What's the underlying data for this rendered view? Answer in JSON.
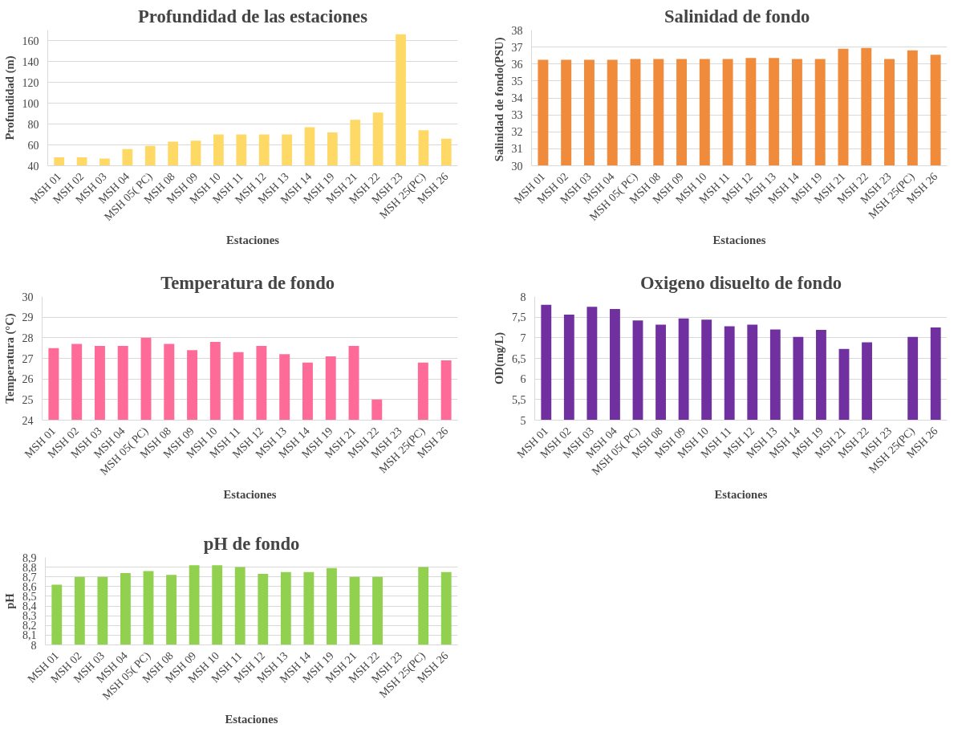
{
  "chart_data": [
    {
      "type": "bar",
      "title": "Profundidad de las estaciones",
      "xlabel": "Estaciones",
      "ylabel": "Profundidad (m)",
      "color": "#ffd966",
      "grid": "y",
      "categories": [
        "MSH 01",
        "MSH 02",
        "MSH 03",
        "MSH 04",
        "MSH 05( PC)",
        "MSH 08",
        "MSH 09",
        "MSH 10",
        "MSH 11",
        "MSH 12",
        "MSH 13",
        "MSH 14",
        "MSH 19",
        "MSH 21",
        "MSH 22",
        "MSH 23",
        "MSH 25(PC)",
        "MSH 26"
      ],
      "values": [
        48,
        48,
        47,
        56,
        59,
        63,
        64,
        70,
        70,
        70,
        70,
        77,
        72,
        84,
        91,
        166,
        74,
        66
      ],
      "ylim": [
        40,
        170
      ],
      "yticks": [
        40,
        60,
        80,
        100,
        120,
        140,
        160
      ]
    },
    {
      "type": "bar",
      "title": "Salinidad  de fondo",
      "xlabel": "Estaciones",
      "ylabel": "Salinidad  de fondo(PSU)",
      "color": "#f08b3c",
      "grid": "y",
      "categories": [
        "MSH 01",
        "MSH 02",
        "MSH 03",
        "MSH 04",
        "MSH 05( PC)",
        "MSH 08",
        "MSH 09",
        "MSH 10",
        "MSH 11",
        "MSH 12",
        "MSH 13",
        "MSH 14",
        "MSH 19",
        "MSH 21",
        "MSH 22",
        "MSH 23",
        "MSH 25(PC)",
        "MSH 26"
      ],
      "values": [
        36.25,
        36.25,
        36.25,
        36.25,
        36.3,
        36.3,
        36.3,
        36.3,
        36.3,
        36.35,
        36.35,
        36.3,
        36.3,
        36.9,
        36.95,
        36.3,
        36.8,
        36.55
      ],
      "ylim": [
        30,
        38
      ],
      "yticks": [
        30,
        31,
        32,
        33,
        34,
        35,
        36,
        37,
        38
      ]
    },
    {
      "type": "bar",
      "title": "Temperatura  de fondo",
      "xlabel": "Estaciones",
      "ylabel": "Temperatura (°C)",
      "color": "#ff6b99",
      "grid": "y",
      "categories": [
        "MSH 01",
        "MSH 02",
        "MSH 03",
        "MSH 04",
        "MSH 05( PC)",
        "MSH 08",
        "MSH 09",
        "MSH 10",
        "MSH 11",
        "MSH 12",
        "MSH 13",
        "MSH 14",
        "MSH 19",
        "MSH 21",
        "MSH 22",
        "MSH 23",
        "MSH 25(PC)",
        "MSH 26"
      ],
      "values": [
        27.5,
        27.7,
        27.6,
        27.6,
        28,
        27.7,
        27.4,
        27.8,
        27.3,
        27.6,
        27.2,
        26.8,
        27.1,
        27.6,
        25,
        null,
        26.8,
        26.9
      ],
      "ylim": [
        24,
        30
      ],
      "yticks": [
        24,
        25,
        26,
        27,
        28,
        29,
        30
      ]
    },
    {
      "type": "bar",
      "title": "Oxigeno disuelto de fondo",
      "xlabel": "Estaciones",
      "ylabel": "OD(mg/L)",
      "color": "#7030a0",
      "grid": "y",
      "categories": [
        "MSH 01",
        "MSH 02",
        "MSH 03",
        "MSH 04",
        "MSH 05( PC)",
        "MSH 08",
        "MSH 09",
        "MSH 10",
        "MSH 11",
        "MSH 12",
        "MSH 13",
        "MSH 14",
        "MSH 19",
        "MSH 21",
        "MSH 22",
        "MSH 23",
        "MSH 25(PC)",
        "MSH 26"
      ],
      "values": [
        7.8,
        7.56,
        7.75,
        7.7,
        7.42,
        7.32,
        7.47,
        7.44,
        7.28,
        7.32,
        7.2,
        7.02,
        7.19,
        6.73,
        6.89,
        null,
        7.02,
        7.25
      ],
      "ylim": [
        5,
        8
      ],
      "yticks": [
        5,
        {
          "value": 5.5,
          "label": "5,5"
        },
        6,
        {
          "value": 6.5,
          "label": "6,5"
        },
        7,
        {
          "value": 7.5,
          "label": "7,5"
        },
        8
      ]
    },
    {
      "type": "bar",
      "title": "pH de fondo",
      "xlabel": "Estaciones",
      "ylabel": "pH",
      "color": "#92d050",
      "grid": "y",
      "categories": [
        "MSH 01",
        "MSH 02",
        "MSH 03",
        "MSH 04",
        "MSH 05( PC)",
        "MSH 08",
        "MSH 09",
        "MSH 10",
        "MSH 11",
        "MSH 12",
        "MSH 13",
        "MSH 14",
        "MSH 19",
        "MSH 21",
        "MSH 22",
        "MSH 23",
        "MSH 25(PC)",
        "MSH 26"
      ],
      "values": [
        8.62,
        8.7,
        8.7,
        8.74,
        8.76,
        8.72,
        8.82,
        8.82,
        8.8,
        8.73,
        8.75,
        8.75,
        8.79,
        8.7,
        8.7,
        null,
        8.8,
        8.75
      ],
      "ylim": [
        8,
        8.9
      ],
      "yticks": [
        8,
        {
          "value": 8.1,
          "label": "8,1"
        },
        {
          "value": 8.2,
          "label": "8,2"
        },
        {
          "value": 8.3,
          "label": "8,3"
        },
        {
          "value": 8.4,
          "label": "8,4"
        },
        {
          "value": 8.5,
          "label": "8,5"
        },
        {
          "value": 8.6,
          "label": "8,6"
        },
        {
          "value": 8.7,
          "label": "8,7"
        },
        {
          "value": 8.8,
          "label": "8,8"
        },
        {
          "value": 8.9,
          "label": "8,9"
        }
      ]
    }
  ]
}
